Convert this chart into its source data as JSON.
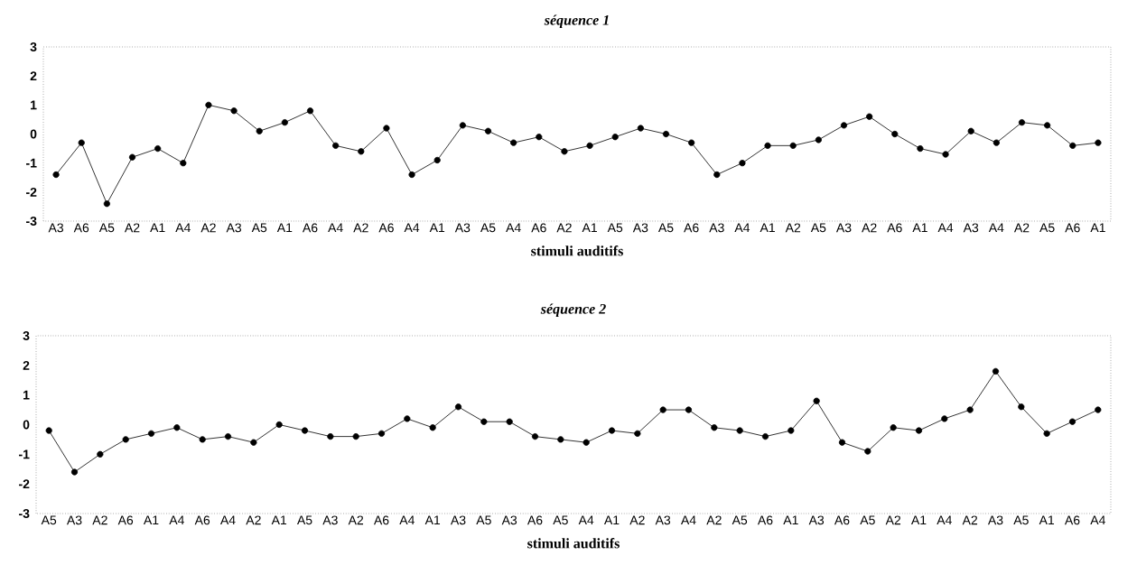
{
  "chart_data": [
    {
      "type": "line",
      "title": "*séquence 1*",
      "xlabel": "stimuli auditifs",
      "categories": [
        "A3",
        "A6",
        "A5",
        "A2",
        "A1",
        "A4",
        "A2",
        "A3",
        "A5",
        "A1",
        "A6",
        "A4",
        "A2",
        "A6",
        "A4",
        "A1",
        "A3",
        "A5",
        "A4",
        "A6",
        "A2",
        "A1",
        "A5",
        "A3",
        "A5",
        "A6",
        "A3",
        "A4",
        "A1",
        "A2",
        "A5",
        "A3",
        "A2",
        "A6",
        "A1",
        "A4",
        "A3",
        "A4",
        "A2",
        "A5",
        "A6",
        "A1"
      ],
      "values": [
        -1.4,
        -0.3,
        -2.4,
        -0.8,
        -0.5,
        -1.0,
        1.0,
        0.8,
        0.1,
        0.4,
        0.8,
        -0.4,
        -0.6,
        0.2,
        -1.4,
        -0.9,
        0.3,
        0.1,
        -0.3,
        -0.1,
        -0.6,
        -0.4,
        -0.1,
        0.2,
        0.0,
        -0.3,
        -1.4,
        -1.0,
        -0.4,
        -0.4,
        -0.2,
        0.3,
        0.6,
        0.0,
        -0.5,
        -0.7,
        0.1,
        -0.3,
        0.4,
        0.3,
        -0.4,
        -0.3
      ],
      "color": "#000000",
      "marker": "circle",
      "ylim": [
        -3,
        3
      ],
      "yticks": [
        -3,
        -2,
        -1,
        0,
        1,
        2,
        3
      ],
      "grid": false
    },
    {
      "type": "line",
      "title": "*séquence 2*",
      "xlabel": "stimuli auditifs",
      "categories": [
        "A5",
        "A3",
        "A2",
        "A6",
        "A1",
        "A4",
        "A6",
        "A4",
        "A2",
        "A1",
        "A5",
        "A3",
        "A2",
        "A6",
        "A4",
        "A1",
        "A3",
        "A5",
        "A3",
        "A6",
        "A5",
        "A4",
        "A1",
        "A2",
        "A3",
        "A4",
        "A2",
        "A5",
        "A6",
        "A1",
        "A3",
        "A6",
        "A5",
        "A2",
        "A1",
        "A4",
        "A2",
        "A3",
        "A5",
        "A1",
        "A6",
        "A4"
      ],
      "values": [
        -0.2,
        -1.6,
        -1.0,
        -0.5,
        -0.3,
        -0.1,
        -0.5,
        -0.4,
        -0.6,
        0.0,
        -0.2,
        -0.4,
        -0.4,
        -0.3,
        0.2,
        -0.1,
        0.6,
        0.1,
        0.1,
        -0.4,
        -0.5,
        -0.6,
        -0.2,
        -0.3,
        0.5,
        0.5,
        -0.1,
        -0.2,
        -0.4,
        -0.2,
        0.8,
        -0.6,
        -0.9,
        -0.1,
        -0.2,
        0.2,
        0.5,
        1.8,
        0.6,
        -0.3,
        0.1,
        0.5
      ],
      "color": "#000000",
      "marker": "circle",
      "ylim": [
        -3,
        3
      ],
      "yticks": [
        -3,
        -2,
        -1,
        0,
        1,
        2,
        3
      ],
      "grid": false
    }
  ]
}
